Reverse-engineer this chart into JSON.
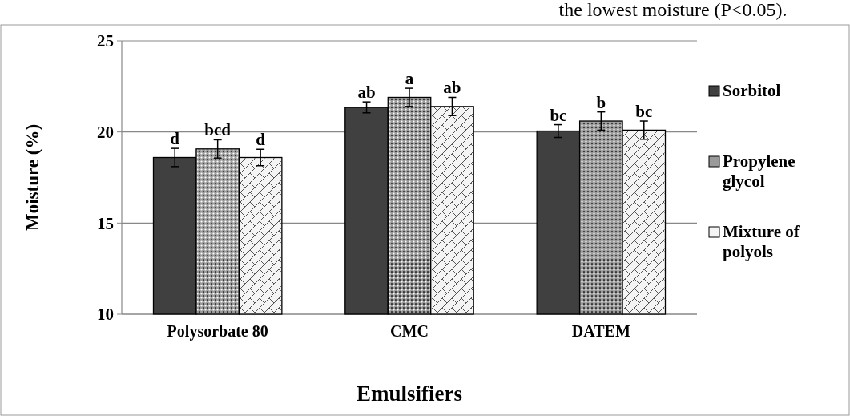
{
  "chart_data": {
    "type": "bar",
    "categories": [
      "Polysorbate 80",
      "CMC",
      "DATEM"
    ],
    "xlabel": "Emulsifiers",
    "ylabel": "Moisture (%)",
    "ylim": [
      10,
      25
    ],
    "yticks": [
      10,
      15,
      20,
      25
    ],
    "grid": "y",
    "legend": "right",
    "annotations": [
      "the lowest moisture (P<0.05)."
    ],
    "series": [
      {
        "name": "Sorbitol",
        "color": "#404040",
        "values": [
          18.6,
          21.35,
          20.05
        ],
        "errors": [
          0.5,
          0.3,
          0.35
        ],
        "value_labels": [
          "d",
          "ab",
          "bc"
        ]
      },
      {
        "name": "Propylene glycol",
        "color": "#9a9a9a",
        "values": [
          19.07,
          21.9,
          20.6
        ],
        "errors": [
          0.5,
          0.5,
          0.5
        ],
        "value_labels": [
          "bcd",
          "a",
          "b"
        ]
      },
      {
        "name": "Mixture of polyols",
        "color": "#f4f4f4",
        "values": [
          18.6,
          21.4,
          20.1
        ],
        "errors": [
          0.45,
          0.5,
          0.5
        ],
        "value_labels": [
          "d",
          "ab",
          "bc"
        ]
      }
    ]
  }
}
